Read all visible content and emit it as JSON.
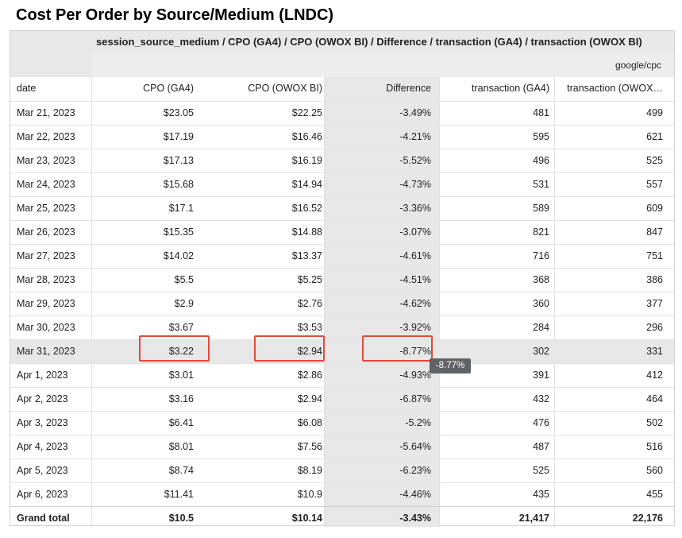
{
  "page_title": "Cost Per Order by Source/Medium (LNDC)",
  "header": {
    "dimension_path": "session_source_medium / CPO (GA4) / CPO (OWOX BI) / Difference / transaction (GA4) / transaction (OWOX BI)",
    "dimension_value": "google/cpc"
  },
  "columns": [
    "date",
    "CPO (GA4)",
    "CPO (OWOX BI)",
    "Difference",
    "transaction (GA4)",
    "transaction (OWOX…"
  ],
  "rows": [
    [
      "Mar 21, 2023",
      "$23.05",
      "$22.25",
      "-3.49%",
      "481",
      "499"
    ],
    [
      "Mar 22, 2023",
      "$17.19",
      "$16.46",
      "-4.21%",
      "595",
      "621"
    ],
    [
      "Mar 23, 2023",
      "$17.13",
      "$16.19",
      "-5.52%",
      "496",
      "525"
    ],
    [
      "Mar 24, 2023",
      "$15.68",
      "$14.94",
      "-4.73%",
      "531",
      "557"
    ],
    [
      "Mar 25, 2023",
      "$17.1",
      "$16.52",
      "-3.36%",
      "589",
      "609"
    ],
    [
      "Mar 26, 2023",
      "$15.35",
      "$14.88",
      "-3.07%",
      "821",
      "847"
    ],
    [
      "Mar 27, 2023",
      "$14.02",
      "$13.37",
      "-4.61%",
      "716",
      "751"
    ],
    [
      "Mar 28, 2023",
      "$5.5",
      "$5.25",
      "-4.51%",
      "368",
      "386"
    ],
    [
      "Mar 29, 2023",
      "$2.9",
      "$2.76",
      "-4.62%",
      "360",
      "377"
    ],
    [
      "Mar 30, 2023",
      "$3.67",
      "$3.53",
      "-3.92%",
      "284",
      "296"
    ],
    [
      "Mar 31, 2023",
      "$3.22",
      "$2.94",
      "-8.77%",
      "302",
      "331"
    ],
    [
      "Apr 1, 2023",
      "$3.01",
      "$2.86",
      "-4.93%",
      "391",
      "412"
    ],
    [
      "Apr 2, 2023",
      "$3.16",
      "$2.94",
      "-6.87%",
      "432",
      "464"
    ],
    [
      "Apr 3, 2023",
      "$6.41",
      "$6.08",
      "-5.2%",
      "476",
      "502"
    ],
    [
      "Apr 4, 2023",
      "$8.01",
      "$7.56",
      "-5.64%",
      "487",
      "516"
    ],
    [
      "Apr 5, 2023",
      "$8.74",
      "$8.19",
      "-6.23%",
      "525",
      "560"
    ],
    [
      "Apr 6, 2023",
      "$11.41",
      "$10.9",
      "-4.46%",
      "435",
      "455"
    ]
  ],
  "grand_total": [
    "Grand total",
    "$10.5",
    "$10.14",
    "-3.43%",
    "21,417",
    "22,176"
  ],
  "highlighted_row_index": 10,
  "tooltip": "-8.77%",
  "colors": {
    "highlight_border": "#e14b3b",
    "header_bg": "#e8e8e8",
    "selected_row_bg": "#e7e7e7",
    "tooltip_bg": "#5f6368"
  }
}
